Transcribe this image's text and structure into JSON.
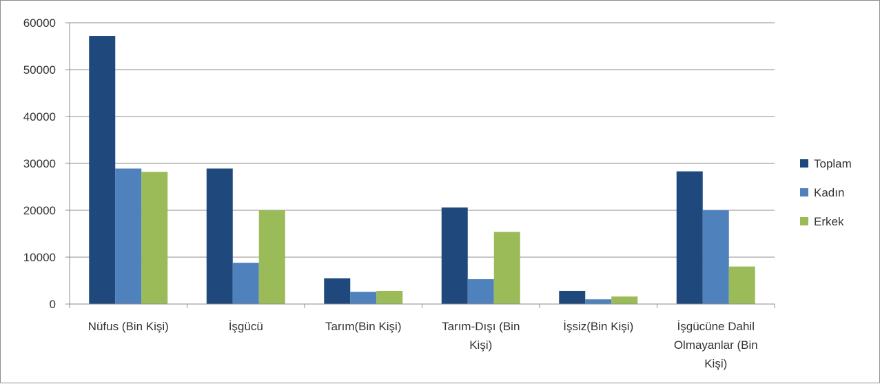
{
  "chart_data": {
    "type": "bar",
    "categories": [
      [
        "Nüfus (Bin Kişi)"
      ],
      [
        "İşgücü"
      ],
      [
        "Tarım(Bin Kişi)"
      ],
      [
        "Tarım-Dışı (Bin",
        "Kişi)"
      ],
      [
        "İşsiz(Bin Kişi)"
      ],
      [
        "İşgücüne Dahil",
        "Olmayanlar (Bin",
        "Kişi)"
      ]
    ],
    "series": [
      {
        "name": "Toplam",
        "color": "#1f497d",
        "values": [
          57200,
          28900,
          5500,
          20600,
          2800,
          28300
        ]
      },
      {
        "name": "Kadın",
        "color": "#4f81bd",
        "values": [
          28900,
          8800,
          2600,
          5300,
          1000,
          20000
        ]
      },
      {
        "name": "Erkek",
        "color": "#9bbb59",
        "values": [
          28200,
          20000,
          2800,
          15400,
          1600,
          8000
        ]
      }
    ],
    "ylim": [
      0,
      60000
    ],
    "yticks": [
      0,
      10000,
      20000,
      30000,
      40000,
      50000,
      60000
    ],
    "grid": true,
    "legend_position": "right"
  }
}
